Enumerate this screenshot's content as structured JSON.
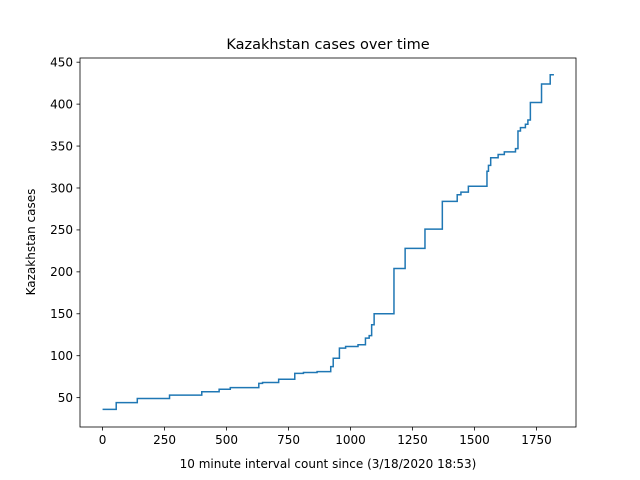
{
  "chart_data": {
    "type": "line",
    "title": "Kazakhstan cases over time",
    "xlabel": "10 minute interval count since (3/18/2020 18:53)",
    "ylabel": "Kazakhstan cases",
    "xlim": [
      -91,
      1909
    ],
    "ylim": [
      15,
      455
    ],
    "xticks": [
      0,
      250,
      500,
      750,
      1000,
      1250,
      1500,
      1750
    ],
    "yticks": [
      50,
      100,
      150,
      200,
      250,
      300,
      350,
      400,
      450
    ],
    "grid": false,
    "color": "#1f77b4",
    "series": [
      {
        "step": "post",
        "points": [
          [
            0,
            36
          ],
          [
            55,
            44
          ],
          [
            140,
            49
          ],
          [
            270,
            53
          ],
          [
            400,
            57
          ],
          [
            470,
            60
          ],
          [
            515,
            62
          ],
          [
            630,
            67
          ],
          [
            645,
            68
          ],
          [
            710,
            72
          ],
          [
            775,
            79
          ],
          [
            810,
            80
          ],
          [
            865,
            81
          ],
          [
            920,
            87
          ],
          [
            930,
            97
          ],
          [
            955,
            109
          ],
          [
            980,
            111
          ],
          [
            1030,
            113
          ],
          [
            1060,
            121
          ],
          [
            1075,
            124
          ],
          [
            1085,
            137
          ],
          [
            1095,
            150
          ],
          [
            1175,
            204
          ],
          [
            1220,
            228
          ],
          [
            1300,
            251
          ],
          [
            1370,
            284
          ],
          [
            1430,
            292
          ],
          [
            1445,
            295
          ],
          [
            1475,
            302
          ],
          [
            1550,
            320
          ],
          [
            1556,
            327
          ],
          [
            1565,
            336
          ],
          [
            1595,
            340
          ],
          [
            1620,
            343
          ],
          [
            1665,
            347
          ],
          [
            1675,
            368
          ],
          [
            1685,
            372
          ],
          [
            1705,
            376
          ],
          [
            1715,
            381
          ],
          [
            1725,
            402
          ],
          [
            1770,
            424
          ],
          [
            1805,
            435
          ],
          [
            1820,
            435
          ]
        ]
      }
    ]
  }
}
